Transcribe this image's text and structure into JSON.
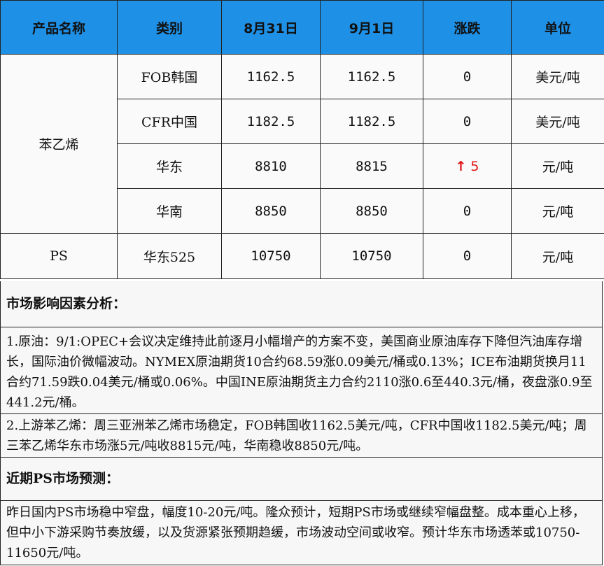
{
  "table": {
    "headers": [
      "产品名称",
      "类别",
      "8月31日",
      "9月1日",
      "涨跌",
      "单位"
    ],
    "groups": [
      {
        "product": "苯乙烯",
        "rows": [
          {
            "category": "FOB韩国",
            "aug31": "1162.5",
            "sep1": "1162.5",
            "change": "0",
            "unit": "美元/吨"
          },
          {
            "category": "CFR中国",
            "aug31": "1182.5",
            "sep1": "1182.5",
            "change": "0",
            "unit": "美元/吨"
          },
          {
            "category": "华东",
            "aug31": "8810",
            "sep1": "8815",
            "change": "5",
            "change_arrow": "↑",
            "unit": "元/吨"
          },
          {
            "category": "华南",
            "aug31": "8850",
            "sep1": "8850",
            "change": "0",
            "unit": "元/吨"
          }
        ]
      },
      {
        "product": "PS",
        "rows": [
          {
            "category": "华东525",
            "aug31": "10750",
            "sep1": "10750",
            "change": "0",
            "unit": "元/吨"
          }
        ]
      }
    ],
    "up_color": "#e01010",
    "header_bg": "#1e90e6"
  },
  "analysis": {
    "title": "市场影响因素分析：",
    "item1": "1.原油：9/1:OPEC+会议决定维持此前逐月小幅增产的方案不变，美国商业原油库存下降但汽油库存增长，国际油价微幅波动。NYMEX原油期货10合约68.59涨0.09美元/桶或0.13%；ICE布油期货换月11合约71.59跌0.04美元/桶或0.06%。中国INE原油期货主力合约2110涨0.6至440.3元/桶，夜盘涨0.9至441.2元/桶。",
    "item2": "2.上游苯乙烯：周三亚洲苯乙烯市场稳定，FOB韩国收1162.5美元/吨，CFR中国收1182.5美元/吨；周三苯乙烯华东市场涨5元/吨收8815元/吨，华南稳收8850元/吨。"
  },
  "forecast": {
    "title": "近期PS市场预测：",
    "text": "昨日国内PS市场稳中窄盘，幅度10-20元/吨。隆众预计，短期PS市场或继续窄幅盘整。成本重心上移，但中小下游采购节奏放缓，以及货源紧张预期趋缓，市场波动空间或收窄。预计华东市场透苯或10750-11650元/吨。"
  }
}
